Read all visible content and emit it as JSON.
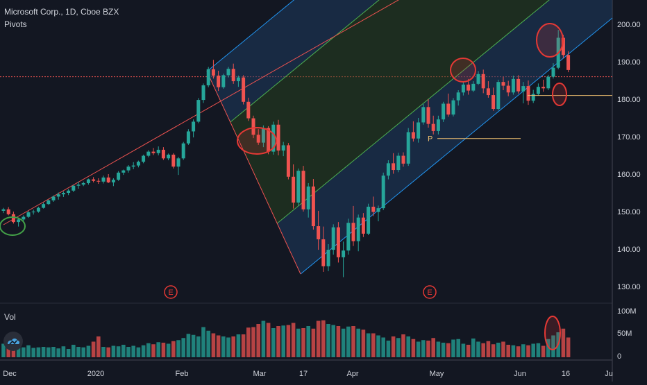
{
  "header": {
    "symbol_title": "Microsoft Corp., 1D, Cboe BZX",
    "indicator_label": "Pivots"
  },
  "volume_pane": {
    "label": "Vol",
    "axis_ticks": [
      "100M",
      "50M",
      "0"
    ]
  },
  "colors": {
    "background": "#131722",
    "up_candle": "#26a69a",
    "down_candle": "#ef5350",
    "outer_channel": "#2196f3",
    "inner_channel": "#4caf50",
    "median_line": "#ef5350",
    "annotation": "#e53935",
    "pivot_line": "#f0c070"
  },
  "chart_data": {
    "type": "candlestick",
    "title": "Microsoft Corp., 1D, Cboe BZX",
    "y_axis": {
      "ticks": [
        200,
        190,
        180,
        170,
        160,
        150,
        140,
        130
      ],
      "tick_labels": [
        "200.00",
        "190.00",
        "180.00",
        "170.00",
        "160.00",
        "150.00",
        "140.00",
        "130.00"
      ],
      "ylim": [
        127,
        207
      ]
    },
    "x_axis": {
      "tick_labels": [
        "Dec",
        "2020",
        "Feb",
        "Mar",
        "17",
        "Apr",
        "May",
        "Jun",
        "16",
        "Ju"
      ]
    },
    "current_price_line": 186,
    "earnings_markers": [
      "E",
      "E"
    ],
    "pivot_label": "P",
    "pivot_level": 169.5,
    "pivot_resistance_level": 181,
    "candles": [
      [
        150.2,
        151.0,
        149.6,
        150.6
      ],
      [
        150.6,
        151.2,
        149.0,
        149.3
      ],
      [
        149.3,
        150.0,
        146.8,
        147.2
      ],
      [
        147.2,
        148.4,
        146.0,
        147.9
      ],
      [
        147.9,
        149.0,
        147.0,
        148.6
      ],
      [
        148.6,
        150.2,
        148.3,
        149.8
      ],
      [
        149.8,
        150.5,
        149.2,
        150.0
      ],
      [
        150.0,
        151.3,
        149.7,
        151.0
      ],
      [
        151.0,
        152.4,
        150.8,
        152.0
      ],
      [
        152.0,
        153.2,
        151.8,
        153.0
      ],
      [
        153.0,
        154.3,
        152.6,
        154.0
      ],
      [
        154.0,
        155.1,
        153.2,
        154.6
      ],
      [
        154.6,
        155.4,
        153.9,
        155.0
      ],
      [
        155.0,
        156.0,
        154.4,
        155.6
      ],
      [
        155.6,
        157.1,
        155.2,
        156.9
      ],
      [
        156.9,
        158.0,
        156.1,
        157.2
      ],
      [
        157.2,
        158.0,
        156.8,
        157.6
      ],
      [
        157.6,
        158.8,
        157.2,
        158.6
      ],
      [
        158.6,
        159.2,
        157.8,
        158.2
      ],
      [
        158.2,
        158.9,
        157.4,
        158.0
      ],
      [
        158.0,
        159.6,
        157.5,
        159.1
      ],
      [
        159.1,
        160.0,
        157.6,
        157.8
      ],
      [
        157.8,
        158.9,
        156.8,
        158.5
      ],
      [
        158.5,
        160.8,
        158.2,
        160.4
      ],
      [
        160.4,
        161.2,
        159.8,
        161.0
      ],
      [
        161.0,
        162.4,
        160.4,
        162.0
      ],
      [
        162.0,
        163.2,
        161.3,
        162.3
      ],
      [
        162.3,
        163.6,
        161.8,
        163.3
      ],
      [
        163.3,
        165.2,
        162.9,
        164.9
      ],
      [
        164.9,
        166.4,
        164.5,
        166.0
      ],
      [
        166.0,
        167.0,
        165.1,
        165.6
      ],
      [
        165.6,
        167.4,
        165.0,
        166.5
      ],
      [
        166.5,
        167.2,
        163.8,
        164.2
      ],
      [
        164.2,
        165.5,
        163.7,
        165.2
      ],
      [
        165.2,
        165.6,
        161.5,
        162.0
      ],
      [
        162.0,
        164.6,
        159.8,
        164.2
      ],
      [
        164.2,
        168.6,
        163.8,
        168.2
      ],
      [
        168.2,
        172.0,
        167.8,
        171.4
      ],
      [
        171.4,
        174.6,
        169.8,
        174.0
      ],
      [
        174.0,
        180.3,
        173.6,
        179.8
      ],
      [
        179.8,
        184.2,
        179.0,
        183.7
      ],
      [
        183.7,
        188.6,
        183.2,
        188.0
      ],
      [
        188.0,
        190.5,
        185.5,
        186.3
      ],
      [
        186.3,
        187.6,
        182.2,
        183.2
      ],
      [
        183.2,
        186.8,
        182.8,
        186.4
      ],
      [
        186.4,
        188.6,
        185.8,
        188.1
      ],
      [
        188.1,
        189.5,
        184.1,
        184.8
      ],
      [
        184.8,
        186.3,
        183.3,
        185.8
      ],
      [
        185.8,
        186.4,
        178.6,
        179.3
      ],
      [
        179.3,
        180.4,
        174.2,
        174.9
      ],
      [
        174.9,
        175.6,
        169.6,
        170.5
      ],
      [
        170.5,
        172.0,
        167.8,
        168.4
      ],
      [
        168.4,
        173.0,
        167.2,
        172.3
      ],
      [
        172.3,
        172.8,
        165.3,
        166.0
      ],
      [
        166.0,
        174.0,
        165.2,
        173.2
      ],
      [
        173.2,
        174.5,
        165.0,
        166.3
      ],
      [
        166.3,
        168.6,
        164.8,
        167.7
      ],
      [
        167.7,
        168.3,
        158.6,
        159.3
      ],
      [
        159.3,
        162.6,
        150.8,
        152.4
      ],
      [
        152.4,
        161.5,
        151.6,
        160.9
      ],
      [
        160.9,
        162.2,
        150.0,
        150.6
      ],
      [
        150.6,
        157.6,
        148.4,
        156.7
      ],
      [
        156.7,
        158.7,
        145.2,
        146.1
      ],
      [
        146.1,
        150.2,
        139.8,
        142.6
      ],
      [
        142.6,
        146.0,
        133.9,
        135.4
      ],
      [
        135.4,
        141.3,
        134.1,
        139.8
      ],
      [
        139.8,
        146.6,
        138.5,
        145.8
      ],
      [
        145.8,
        147.2,
        136.4,
        137.8
      ],
      [
        137.8,
        142.0,
        132.5,
        139.6
      ],
      [
        139.6,
        148.1,
        138.5,
        147.0
      ],
      [
        147.0,
        151.5,
        140.8,
        142.1
      ],
      [
        142.1,
        149.2,
        139.4,
        148.4
      ],
      [
        148.4,
        149.6,
        143.2,
        144.1
      ],
      [
        144.1,
        152.1,
        143.7,
        151.3
      ],
      [
        151.3,
        154.0,
        148.8,
        149.9
      ],
      [
        149.9,
        151.6,
        147.4,
        150.9
      ],
      [
        150.9,
        160.4,
        150.4,
        159.6
      ],
      [
        159.6,
        163.7,
        158.6,
        162.9
      ],
      [
        162.9,
        165.6,
        160.1,
        161.1
      ],
      [
        161.1,
        165.7,
        160.5,
        164.9
      ],
      [
        164.9,
        165.8,
        162.0,
        162.8
      ],
      [
        162.8,
        172.3,
        162.2,
        171.2
      ],
      [
        171.2,
        174.1,
        168.7,
        169.5
      ],
      [
        169.5,
        175.0,
        168.4,
        173.8
      ],
      [
        173.8,
        178.7,
        173.2,
        177.9
      ],
      [
        177.9,
        180.0,
        172.4,
        173.4
      ],
      [
        173.4,
        175.6,
        170.6,
        171.5
      ],
      [
        171.5,
        175.6,
        170.6,
        174.6
      ],
      [
        174.6,
        179.3,
        173.9,
        178.8
      ],
      [
        178.8,
        181.5,
        175.3,
        175.9
      ],
      [
        175.9,
        180.3,
        175.4,
        179.7
      ],
      [
        179.7,
        182.4,
        178.3,
        181.8
      ],
      [
        181.8,
        184.6,
        181.0,
        183.9
      ],
      [
        183.9,
        185.4,
        181.2,
        182.3
      ],
      [
        182.3,
        184.8,
        181.9,
        184.1
      ],
      [
        184.1,
        187.5,
        183.8,
        186.7
      ],
      [
        186.7,
        187.9,
        181.6,
        182.9
      ],
      [
        182.9,
        184.8,
        180.4,
        181.1
      ],
      [
        181.1,
        183.1,
        176.9,
        177.4
      ],
      [
        177.4,
        185.2,
        177.0,
        184.6
      ],
      [
        184.6,
        186.0,
        182.4,
        183.6
      ],
      [
        183.6,
        184.9,
        180.8,
        181.8
      ],
      [
        181.8,
        186.3,
        181.2,
        185.4
      ],
      [
        185.4,
        186.4,
        181.5,
        182.1
      ],
      [
        182.1,
        184.6,
        178.9,
        183.5
      ],
      [
        183.5,
        185.0,
        178.5,
        179.6
      ],
      [
        179.6,
        182.5,
        179.0,
        181.4
      ],
      [
        181.4,
        184.2,
        181.0,
        183.3
      ],
      [
        183.3,
        185.2,
        182.0,
        182.9
      ],
      [
        182.9,
        186.5,
        182.4,
        186.0
      ],
      [
        186.0,
        189.6,
        185.5,
        188.4
      ],
      [
        188.4,
        198.5,
        188.0,
        196.4
      ],
      [
        196.4,
        197.2,
        191.0,
        191.8
      ],
      [
        191.8,
        192.8,
        187.2,
        187.8
      ]
    ],
    "volume_pct": [
      26,
      21,
      33,
      22,
      19,
      23,
      18,
      19,
      20,
      19,
      20,
      17,
      21,
      16,
      24,
      20,
      19,
      22,
      30,
      40,
      20,
      19,
      22,
      21,
      24,
      20,
      22,
      19,
      23,
      27,
      25,
      29,
      28,
      26,
      31,
      33,
      37,
      45,
      43,
      40,
      58,
      51,
      46,
      42,
      40,
      38,
      40,
      44,
      44,
      57,
      58,
      64,
      70,
      66,
      56,
      60,
      61,
      62,
      66,
      55,
      56,
      60,
      55,
      70,
      71,
      64,
      62,
      60,
      55,
      59,
      60,
      55,
      53,
      46,
      46,
      42,
      38,
      32,
      40,
      37,
      44,
      40,
      35,
      30,
      33,
      32,
      37,
      30,
      28,
      27,
      34,
      35,
      26,
      24,
      36,
      30,
      27,
      31,
      25,
      28,
      30,
      24,
      23,
      21,
      25,
      23,
      26,
      27,
      22,
      35,
      42,
      48,
      55,
      38
    ]
  }
}
